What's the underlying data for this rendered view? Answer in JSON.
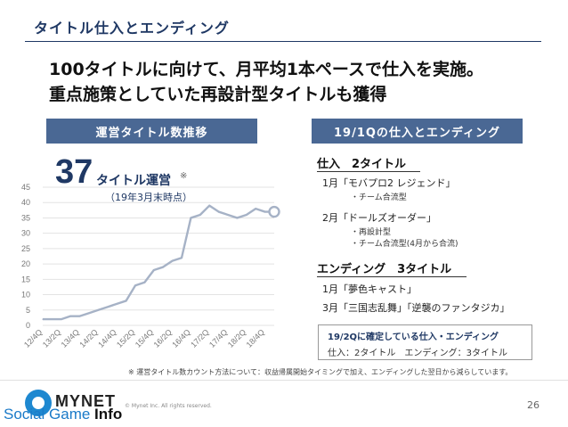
{
  "slide": {
    "title": "タイトル仕入とエンディング",
    "headline_1": "100タイトルに向けて、月平均1本ペースで仕入を実施。",
    "headline_2": "重点施策としていた再設計型タイトルも獲得",
    "page_number": "26",
    "footnote": "※ 運営タイトル数カウント方法について：収益帰属開始タイミングで加え、エンディングした翌日から減らしています。",
    "copyright": "© Mynet Inc. All rights reserved.",
    "logo_text": "MYNET",
    "brand_overlay_a": "Social Game",
    "brand_overlay_b": " Info"
  },
  "left_panel": {
    "band_label": "運営タイトル数推移",
    "big_number": "37",
    "big_label": "タイトル運営",
    "big_note": "※",
    "sub_label": "（19年3月末時点）"
  },
  "right_panel": {
    "band_label": "19/1Qの仕入とエンディング",
    "acquire_head": "仕入　2タイトル",
    "acquire_1": "1月「モバプロ2 レジェンド」",
    "acquire_1_note": "・チーム合流型",
    "acquire_2": "2月「ドールズオーダー」",
    "acquire_2_note_1": "・再設計型",
    "acquire_2_note_2": "・チーム合流型(4月から合流)",
    "ending_head": "エンディング　3タイトル",
    "ending_1": "1月「夢色キャスト」",
    "ending_2": "3月「三国志乱舞」「逆襲のファンタジカ」",
    "confirm_title": "19/2Qに確定している仕入・エンディング",
    "confirm_text": "仕入：2タイトル　エンディング：3タイトル"
  },
  "colors": {
    "accent": "#1f3864",
    "band": "#4a6894",
    "line": "#a6b2c6",
    "grid": "#e3e3e3"
  },
  "chart_data": {
    "type": "line",
    "title": "",
    "xlabel": "",
    "ylabel": "",
    "ylim": [
      0,
      45
    ],
    "yticks": [
      0,
      5,
      10,
      15,
      20,
      25,
      30,
      35,
      40,
      45
    ],
    "grid": true,
    "tick_labels": [
      "12/4Q",
      "13/2Q",
      "13/4Q",
      "14/2Q",
      "14/4Q",
      "15/2Q",
      "15/4Q",
      "16/2Q",
      "16/4Q",
      "17/2Q",
      "17/4Q",
      "18/2Q",
      "18/4Q"
    ],
    "x": [
      "12/4Q",
      "13/1Q",
      "13/2Q",
      "13/3Q",
      "13/4Q",
      "14/1Q",
      "14/2Q",
      "14/3Q",
      "14/4Q",
      "15/1Q",
      "15/2Q",
      "15/3Q",
      "15/4Q",
      "16/1Q",
      "16/2Q",
      "16/3Q",
      "16/4Q",
      "17/1Q",
      "17/2Q",
      "17/3Q",
      "17/4Q",
      "18/1Q",
      "18/2Q",
      "18/3Q",
      "18/4Q",
      "19/1Q"
    ],
    "series": [
      {
        "values": [
          2,
          2,
          2,
          3,
          3,
          4,
          5,
          6,
          7,
          8,
          13,
          14,
          18,
          19,
          21,
          22,
          35,
          36,
          39,
          37,
          36,
          35,
          36,
          38,
          37,
          37
        ]
      }
    ]
  }
}
